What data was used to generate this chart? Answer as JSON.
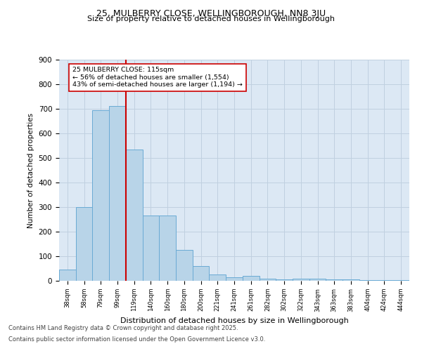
{
  "title_line1": "25, MULBERRY CLOSE, WELLINGBOROUGH, NN8 3JU",
  "title_line2": "Size of property relative to detached houses in Wellingborough",
  "xlabel": "Distribution of detached houses by size in Wellingborough",
  "ylabel": "Number of detached properties",
  "categories": [
    "38sqm",
    "58sqm",
    "79sqm",
    "99sqm",
    "119sqm",
    "140sqm",
    "160sqm",
    "180sqm",
    "200sqm",
    "221sqm",
    "241sqm",
    "261sqm",
    "282sqm",
    "302sqm",
    "322sqm",
    "343sqm",
    "363sqm",
    "383sqm",
    "404sqm",
    "424sqm",
    "444sqm"
  ],
  "values": [
    45,
    300,
    695,
    710,
    535,
    265,
    265,
    125,
    60,
    25,
    15,
    20,
    10,
    5,
    10,
    10,
    5,
    5,
    2,
    2,
    2
  ],
  "bar_color": "#b8d4e8",
  "bar_edge_color": "#6aaad4",
  "vline_color": "#cc0000",
  "annotation_text": "25 MULBERRY CLOSE: 115sqm\n← 56% of detached houses are smaller (1,554)\n43% of semi-detached houses are larger (1,194) →",
  "grid_color": "#c0d0e0",
  "background_color": "#dce8f4",
  "fig_background": "#ffffff",
  "footer_line1": "Contains HM Land Registry data © Crown copyright and database right 2025.",
  "footer_line2": "Contains public sector information licensed under the Open Government Licence v3.0.",
  "ylim": [
    0,
    900
  ],
  "yticks": [
    0,
    100,
    200,
    300,
    400,
    500,
    600,
    700,
    800,
    900
  ]
}
